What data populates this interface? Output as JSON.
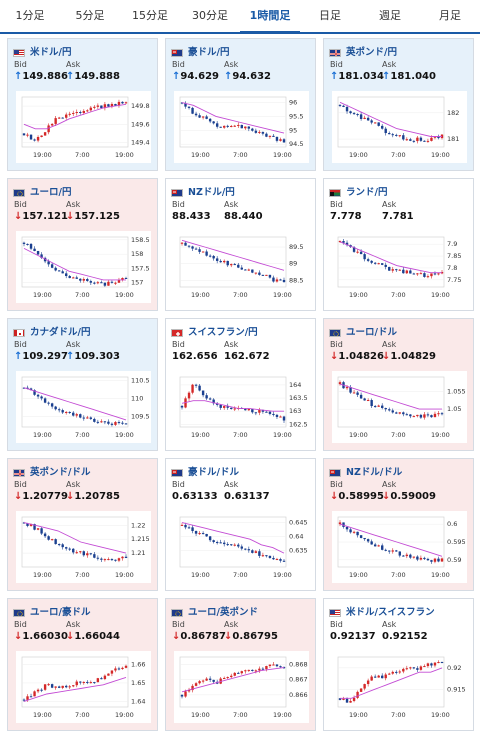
{
  "tabs": [
    {
      "label": "1分足",
      "active": false
    },
    {
      "label": "5分足",
      "active": false
    },
    {
      "label": "15分足",
      "active": false
    },
    {
      "label": "30分足",
      "active": false
    },
    {
      "label": "1時間足",
      "active": true
    },
    {
      "label": "日足",
      "active": false
    },
    {
      "label": "週足",
      "active": false
    },
    {
      "label": "月足",
      "active": false
    }
  ],
  "labels": {
    "bid": "Bid",
    "ask": "Ask"
  },
  "pairs": [
    {
      "name": "米ドル/円",
      "flag": "us",
      "dir": "up",
      "bid": "149.886",
      "ask": "149.888",
      "chart_data": {
        "type": "candlestick",
        "xticks": [
          "19:00",
          "7:00",
          "19:00"
        ],
        "yticks": [
          "149.4",
          "149.6",
          "149.8"
        ],
        "ylim": [
          149.35,
          149.9
        ],
        "trend": [
          149.5,
          149.42,
          149.55,
          149.68,
          149.7,
          149.72,
          149.78,
          149.8,
          149.82,
          149.85
        ],
        "ma": [
          149.6,
          149.55,
          149.55,
          149.6,
          149.66,
          149.7,
          149.74,
          149.78,
          149.8,
          149.82
        ]
      }
    },
    {
      "name": "豪ドル/円",
      "flag": "au",
      "dir": "up",
      "bid": "94.629",
      "ask": "94.632",
      "chart_data": {
        "type": "candlestick",
        "xticks": [
          "19:00",
          "7:00",
          "19:00"
        ],
        "yticks": [
          "94.5",
          "95",
          "95.5",
          "96"
        ],
        "ylim": [
          94.4,
          96.2
        ],
        "trend": [
          96.0,
          95.6,
          95.4,
          95.2,
          95.1,
          95.2,
          95.0,
          94.9,
          94.7,
          94.6
        ],
        "ma": [
          96.0,
          95.9,
          95.7,
          95.5,
          95.4,
          95.3,
          95.2,
          95.1,
          95.0,
          94.9
        ]
      }
    },
    {
      "name": "英ポンド/円",
      "flag": "gb",
      "dir": "up",
      "bid": "181.034",
      "ask": "181.040",
      "chart_data": {
        "type": "candlestick",
        "xticks": [
          "19:00",
          "7:00",
          "19:00"
        ],
        "yticks": [
          "181",
          "182"
        ],
        "ylim": [
          180.7,
          182.6
        ],
        "trend": [
          182.3,
          182.0,
          181.8,
          181.6,
          181.3,
          181.1,
          181.0,
          181.0,
          181.0,
          181.1
        ],
        "ma": [
          182.4,
          182.2,
          182.0,
          181.8,
          181.6,
          181.4,
          181.3,
          181.2,
          181.1,
          181.1
        ]
      }
    },
    {
      "name": "ユーロ/円",
      "flag": "eu",
      "dir": "down",
      "bid": "157.121",
      "ask": "157.125",
      "chart_data": {
        "type": "candlestick",
        "xticks": [
          "19:00",
          "7:00",
          "19:00"
        ],
        "yticks": [
          "157",
          "157.5",
          "158",
          "158.5"
        ],
        "ylim": [
          156.85,
          158.6
        ],
        "trend": [
          158.4,
          158.1,
          157.7,
          157.4,
          157.2,
          157.1,
          157.0,
          156.95,
          157.0,
          157.2
        ],
        "ma": [
          158.2,
          158.0,
          157.8,
          157.6,
          157.4,
          157.3,
          157.2,
          157.1,
          157.1,
          157.1
        ]
      }
    },
    {
      "name": "NZドル/円",
      "flag": "nz",
      "dir": "flat",
      "bid": "88.433",
      "ask": "88.440",
      "chart_data": {
        "type": "candlestick",
        "xticks": [
          "19:00",
          "7:00",
          "19:00"
        ],
        "yticks": [
          "88.5",
          "89",
          "89.5"
        ],
        "ylim": [
          88.3,
          89.8
        ],
        "trend": [
          89.6,
          89.4,
          89.3,
          89.1,
          89.0,
          88.9,
          88.8,
          88.7,
          88.5,
          88.45
        ],
        "ma": [
          89.7,
          89.6,
          89.5,
          89.4,
          89.3,
          89.2,
          89.1,
          89.0,
          88.9,
          88.8
        ]
      }
    },
    {
      "name": "ランド/円",
      "flag": "za",
      "dir": "flat",
      "bid": "7.778",
      "ask": "7.781",
      "chart_data": {
        "type": "candlestick",
        "xticks": [
          "19:00",
          "7:00",
          "19:00"
        ],
        "yticks": [
          "7.75",
          "7.8",
          "7.85",
          "7.9"
        ],
        "ylim": [
          7.72,
          7.93
        ],
        "trend": [
          7.91,
          7.88,
          7.85,
          7.82,
          7.8,
          7.79,
          7.78,
          7.77,
          7.77,
          7.78
        ],
        "ma": [
          7.91,
          7.89,
          7.87,
          7.85,
          7.83,
          7.81,
          7.8,
          7.79,
          7.78,
          7.78
        ]
      }
    },
    {
      "name": "カナダドル/円",
      "flag": "ca",
      "dir": "up",
      "bid": "109.297",
      "ask": "109.303",
      "chart_data": {
        "type": "candlestick",
        "xticks": [
          "19:00",
          "7:00",
          "19:00"
        ],
        "yticks": [
          "109.5",
          "110",
          "110.5"
        ],
        "ylim": [
          109.2,
          110.6
        ],
        "trend": [
          110.3,
          110.1,
          109.9,
          109.7,
          109.6,
          109.5,
          109.4,
          109.35,
          109.3,
          109.3
        ],
        "ma": [
          110.3,
          110.2,
          110.1,
          110.0,
          109.9,
          109.8,
          109.7,
          109.6,
          109.5,
          109.4
        ]
      }
    },
    {
      "name": "スイスフラン/円",
      "flag": "ch",
      "dir": "flat",
      "bid": "162.656",
      "ask": "162.672",
      "chart_data": {
        "type": "candlestick",
        "xticks": [
          "19:00",
          "7:00",
          "19:00"
        ],
        "yticks": [
          "162.5",
          "163",
          "163.5",
          "164"
        ],
        "ylim": [
          162.4,
          164.3
        ],
        "trend": [
          163.2,
          164.0,
          163.6,
          163.2,
          163.1,
          163.1,
          163.0,
          163.0,
          162.9,
          162.7
        ],
        "ma": [
          163.3,
          163.4,
          163.4,
          163.3,
          163.2,
          163.1,
          163.1,
          163.05,
          163.0,
          163.0
        ]
      }
    },
    {
      "name": "ユーロ/ドル",
      "flag": "eu",
      "dir": "down",
      "bid": "1.04826",
      "ask": "1.04829",
      "chart_data": {
        "type": "candlestick",
        "xticks": [
          "19:00",
          "7:00",
          "19:00"
        ],
        "yticks": [
          "1.05",
          "1.055"
        ],
        "ylim": [
          1.045,
          1.059
        ],
        "trend": [
          1.057,
          1.055,
          1.053,
          1.051,
          1.05,
          1.049,
          1.048,
          1.048,
          1.048,
          1.049
        ],
        "ma": [
          1.057,
          1.056,
          1.055,
          1.054,
          1.053,
          1.052,
          1.051,
          1.05,
          1.05,
          1.05
        ]
      }
    },
    {
      "name": "英ポンド/ドル",
      "flag": "gb",
      "dir": "down",
      "bid": "1.20779",
      "ask": "1.20785",
      "chart_data": {
        "type": "candlestick",
        "xticks": [
          "19:00",
          "7:00",
          "19:00"
        ],
        "yticks": [
          "1.21",
          "1.215",
          "1.22"
        ],
        "ylim": [
          1.205,
          1.223
        ],
        "trend": [
          1.221,
          1.219,
          1.216,
          1.213,
          1.211,
          1.21,
          1.209,
          1.208,
          1.208,
          1.208
        ],
        "ma": [
          1.221,
          1.22,
          1.219,
          1.218,
          1.216,
          1.214,
          1.213,
          1.212,
          1.211,
          1.21
        ]
      }
    },
    {
      "name": "豪ドル/ドル",
      "flag": "au",
      "dir": "flat",
      "bid": "0.63133",
      "ask": "0.63137",
      "chart_data": {
        "type": "candlestick",
        "xticks": [
          "19:00",
          "7:00",
          "19:00"
        ],
        "yticks": [
          "0.635",
          "0.64",
          "0.645"
        ],
        "ylim": [
          0.629,
          0.647
        ],
        "trend": [
          0.644,
          0.642,
          0.64,
          0.638,
          0.637,
          0.636,
          0.635,
          0.633,
          0.632,
          0.631
        ],
        "ma": [
          0.645,
          0.644,
          0.643,
          0.642,
          0.641,
          0.64,
          0.639,
          0.637,
          0.636,
          0.634
        ]
      }
    },
    {
      "name": "NZドル/ドル",
      "flag": "nz",
      "dir": "down",
      "bid": "0.58995",
      "ask": "0.59009",
      "chart_data": {
        "type": "candlestick",
        "xticks": [
          "19:00",
          "7:00",
          "19:00"
        ],
        "yticks": [
          "0.59",
          "0.595",
          "0.6"
        ],
        "ylim": [
          0.588,
          0.602
        ],
        "trend": [
          0.6,
          0.598,
          0.596,
          0.594,
          0.593,
          0.592,
          0.591,
          0.59,
          0.59,
          0.59
        ],
        "ma": [
          0.6,
          0.599,
          0.598,
          0.597,
          0.596,
          0.595,
          0.594,
          0.593,
          0.592,
          0.591
        ]
      }
    },
    {
      "name": "ユーロ/豪ドル",
      "flag": "eu",
      "dir": "down",
      "bid": "1.66030",
      "ask": "1.66044",
      "chart_data": {
        "type": "candlestick",
        "xticks": [
          "19:00",
          "7:00",
          "19:00"
        ],
        "yticks": [
          "1.64",
          "1.65",
          "1.66"
        ],
        "ylim": [
          1.637,
          1.664
        ],
        "trend": [
          1.641,
          1.645,
          1.649,
          1.647,
          1.649,
          1.65,
          1.651,
          1.653,
          1.657,
          1.66
        ],
        "ma": [
          1.64,
          1.642,
          1.644,
          1.645,
          1.646,
          1.647,
          1.648,
          1.649,
          1.651,
          1.653
        ]
      }
    },
    {
      "name": "ユーロ/英ポンド",
      "flag": "eu",
      "dir": "down",
      "bid": "0.86787",
      "ask": "0.86795",
      "chart_data": {
        "type": "candlestick",
        "xticks": [
          "19:00",
          "7:00",
          "19:00"
        ],
        "yticks": [
          "0.866",
          "0.867",
          "0.868"
        ],
        "ylim": [
          0.8652,
          0.8685
        ],
        "trend": [
          0.866,
          0.8666,
          0.867,
          0.8668,
          0.8672,
          0.8675,
          0.8676,
          0.8678,
          0.868,
          0.8679
        ],
        "ma": [
          0.8662,
          0.8664,
          0.8666,
          0.8668,
          0.867,
          0.8672,
          0.8674,
          0.8676,
          0.8677,
          0.8678
        ]
      }
    },
    {
      "name": "米ドル/スイスフラン",
      "flag": "us",
      "dir": "flat",
      "bid": "0.92137",
      "ask": "0.92152",
      "chart_data": {
        "type": "candlestick",
        "xticks": [
          "19:00",
          "7:00",
          "19:00"
        ],
        "yticks": [
          "0.915",
          "0.92"
        ],
        "ylim": [
          0.911,
          0.9225
        ],
        "trend": [
          0.913,
          0.912,
          0.916,
          0.918,
          0.918,
          0.919,
          0.92,
          0.92,
          0.921,
          0.921
        ],
        "ma": [
          0.913,
          0.913,
          0.914,
          0.915,
          0.916,
          0.917,
          0.918,
          0.919,
          0.919,
          0.92
        ]
      }
    }
  ],
  "colors": {
    "up_bg": "#e6f1fa",
    "down_bg": "#fae9e9",
    "up_arrow": "#1a6fd4",
    "down_arrow": "#d42828",
    "ma": "#c34bd4",
    "candle_up": "#d42828",
    "candle_down": "#1a3f8f"
  }
}
